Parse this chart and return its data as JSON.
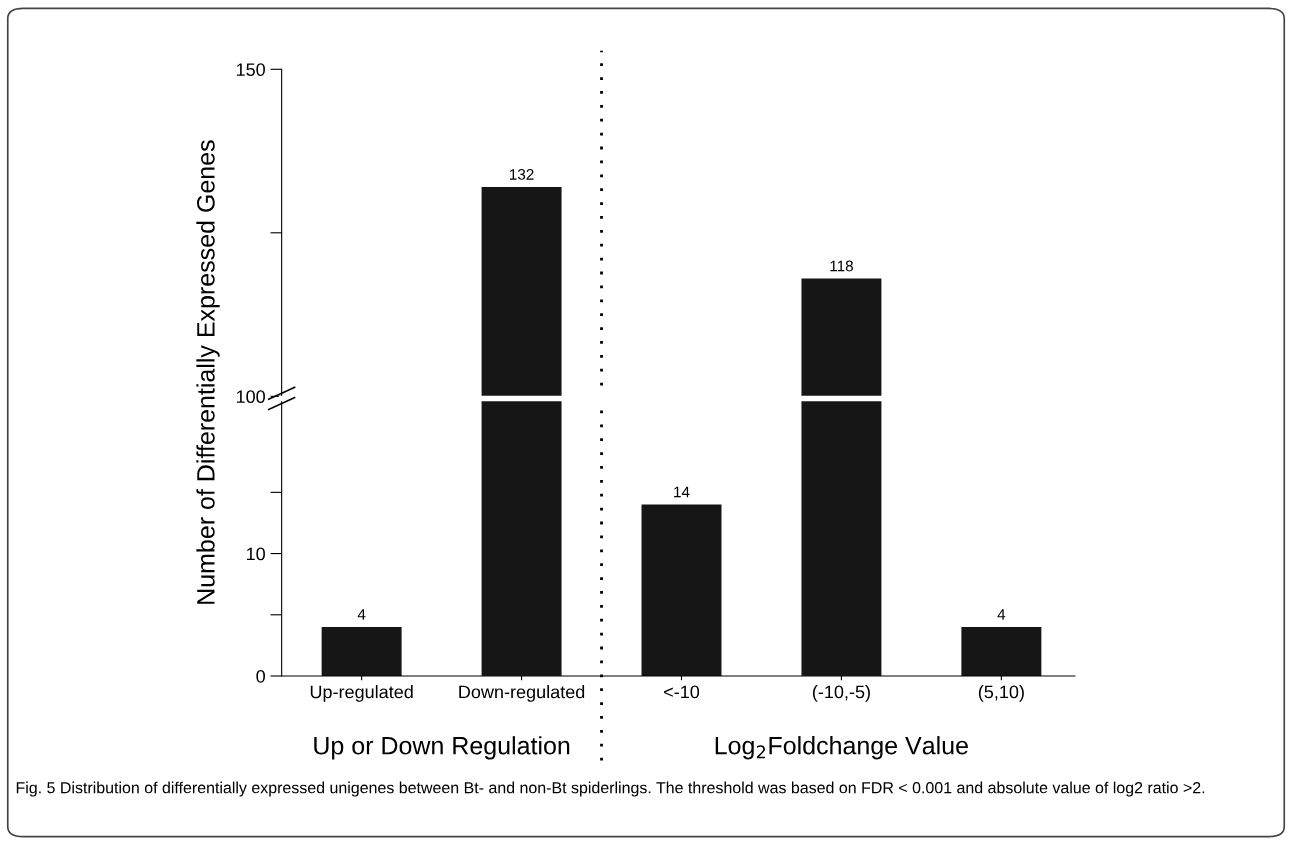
{
  "chart_data": [
    {
      "type": "bar",
      "categories": [
        null,
        null,
        null,
        null,
        null
      ],
      "values": [
        null,
        132,
        null,
        118,
        null
      ],
      "color": "#161616",
      "ylabel": "Number of Differentially Expressed Genes",
      "ylim": [
        100,
        150
      ],
      "yticks": [
        100,
        {
          "value": 125,
          "label": null
        },
        150
      ],
      "tick_labels": "y",
      "data_labels": true,
      "grid": false
    },
    {
      "type": "bar",
      "categories": [
        "Up-regulated",
        "Down-regulated",
        "<-10",
        "(-10,-5)",
        "(5,10)"
      ],
      "values": [
        4,
        null,
        14,
        null,
        4
      ],
      "color": "#161616",
      "ylim": [
        0,
        22.5
      ],
      "yticks": [
        0,
        {
          "value": 5,
          "label": null
        },
        10,
        {
          "value": 15,
          "label": null
        }
      ],
      "data_labels": true,
      "grid": false,
      "annotations": [
        "Up or Down Regulation",
        "Log$_{2}$Foldchange Value",
        "Fig. 5 Distribution of differentially expressed unigenes between Bt- and non-Bt spiderlings. The threshold was based on FDR < 0.001 and absolute value of log2 ratio >2."
      ]
    }
  ]
}
